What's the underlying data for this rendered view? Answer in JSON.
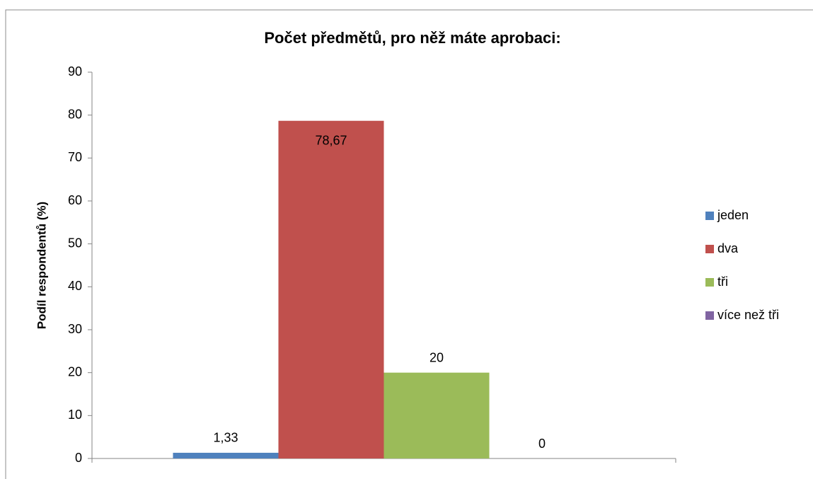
{
  "chart_data": {
    "type": "bar",
    "title": "Počet předmětů, pro něž máte aprobaci:",
    "y_label": "Podíl respondentů (%)",
    "categories": [
      null
    ],
    "series": [
      {
        "name": "jeden",
        "color": "#4f81bd",
        "values": [
          1.33
        ],
        "value_labels": [
          "1,33"
        ]
      },
      {
        "name": "dva",
        "color": "#c0504d",
        "values": [
          78.67
        ],
        "value_labels": [
          "78,67"
        ]
      },
      {
        "name": "tři",
        "color": "#9bbb59",
        "values": [
          20
        ],
        "value_labels": [
          "20"
        ]
      },
      {
        "name": "více než tři",
        "color": "#8064a2",
        "values": [
          0
        ],
        "value_labels": [
          "0"
        ]
      }
    ],
    "ylim": [
      0,
      90
    ],
    "yticks": [
      0,
      10,
      20,
      30,
      40,
      50,
      60,
      70,
      80,
      90
    ],
    "grid": false,
    "legend": "right"
  }
}
